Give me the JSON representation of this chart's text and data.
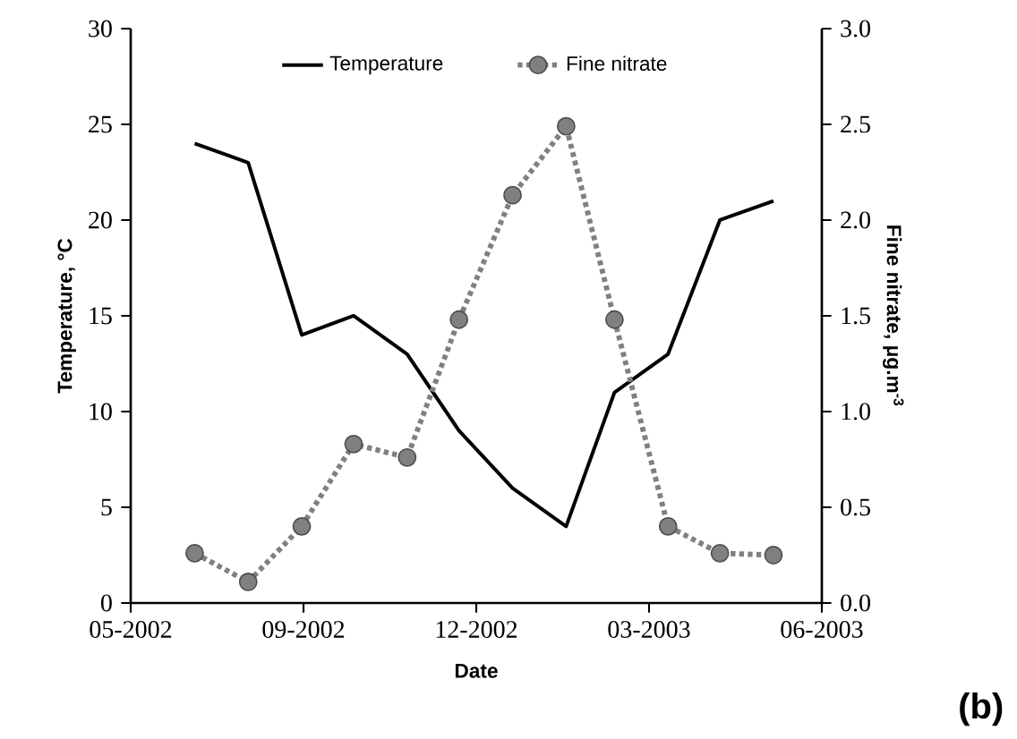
{
  "chart_data": {
    "type": "line",
    "x": [
      "2002-07-01",
      "2002-08-01",
      "2002-09-01",
      "2002-10-01",
      "2002-11-01",
      "2002-12-01",
      "2003-01-01",
      "2003-02-01",
      "2003-03-01",
      "2003-04-01",
      "2003-05-01",
      "2003-06-01"
    ],
    "series": [
      {
        "name": "Temperature",
        "color": "#000000",
        "line_style": "solid",
        "marker": "none",
        "values": [
          24,
          23,
          14,
          15,
          13,
          9,
          6,
          4,
          11,
          13,
          20,
          21
        ]
      },
      {
        "name": "Fine nitrate",
        "color": "#808080",
        "line_style": "dotted",
        "marker": "circle",
        "axis": "y2",
        "values": [
          0.26,
          0.11,
          0.4,
          0.83,
          0.76,
          1.48,
          2.13,
          2.49,
          1.48,
          0.4,
          0.26,
          0.25
        ]
      }
    ],
    "xlim": [
      "2002-05-25",
      "2003-06-29"
    ],
    "xticks": [
      {
        "value": "2002-05-25",
        "label": "05-2002"
      },
      {
        "value": "2002-09-02",
        "label": "09-2002"
      },
      {
        "value": "2002-12-11",
        "label": "12-2002"
      },
      {
        "value": "2003-03-21",
        "label": "03-2003"
      },
      {
        "value": "2003-06-29",
        "label": "06-2003"
      }
    ],
    "ylim": [
      0,
      30
    ],
    "yticks": [
      0,
      5,
      10,
      15,
      20,
      25,
      30
    ],
    "y2lim": [
      0,
      3
    ],
    "y2ticks": [
      {
        "value": 0,
        "label": "0.0"
      },
      {
        "value": 0.5,
        "label": "0.5"
      },
      {
        "value": 1,
        "label": "1.0"
      },
      {
        "value": 1.5,
        "label": "1.5"
      },
      {
        "value": 2,
        "label": "2.0"
      },
      {
        "value": 2.5,
        "label": "2.5"
      },
      {
        "value": 3,
        "label": "3.0"
      }
    ],
    "xlabel": "Date",
    "ylabel": "Temperature, °C",
    "y2label": "Fine nitrate, μg.m$^{-3}$",
    "legend": "top",
    "annotations": [
      "(b)"
    ]
  }
}
